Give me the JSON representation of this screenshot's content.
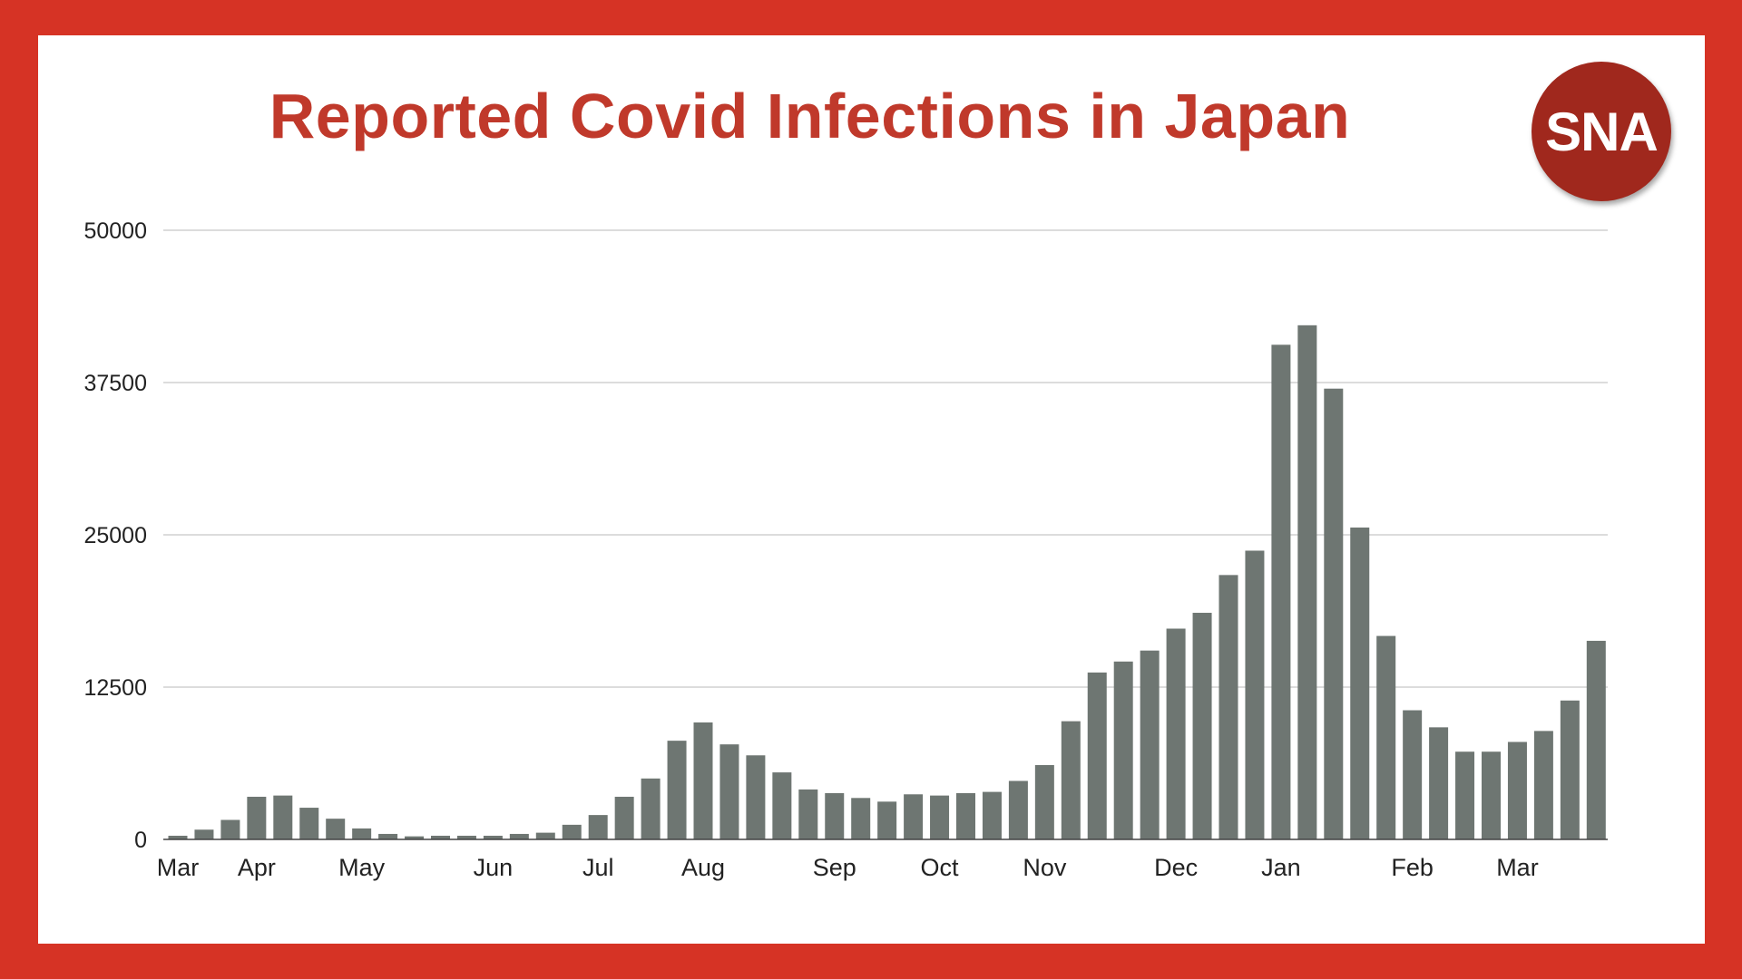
{
  "title": "Reported Covid Infections in Japan",
  "logo_text": "SNA",
  "colors": {
    "border": "#d63325",
    "title": "#c0392b",
    "logo": "#a0281d",
    "bar": "#6e7672",
    "grid": "#c8c8c8"
  },
  "chart_data": {
    "type": "bar",
    "title": "Reported Covid Infections in Japan",
    "xlabel": "",
    "ylabel": "",
    "ylim": [
      0,
      50000
    ],
    "yticks": [
      0,
      12500,
      25000,
      37500,
      50000
    ],
    "ytick_labels": [
      "0",
      "12500",
      "25000",
      "37500",
      "50000"
    ],
    "grid": true,
    "x_tick_labels": [
      {
        "label": "Mar",
        "bar_index": 0
      },
      {
        "label": "Apr",
        "bar_index": 3
      },
      {
        "label": "May",
        "bar_index": 7
      },
      {
        "label": "Jun",
        "bar_index": 12
      },
      {
        "label": "Jul",
        "bar_index": 16
      },
      {
        "label": "Aug",
        "bar_index": 20
      },
      {
        "label": "Sep",
        "bar_index": 25
      },
      {
        "label": "Oct",
        "bar_index": 29
      },
      {
        "label": "Nov",
        "bar_index": 33
      },
      {
        "label": "Dec",
        "bar_index": 38
      },
      {
        "label": "Jan",
        "bar_index": 42
      },
      {
        "label": "Feb",
        "bar_index": 47
      },
      {
        "label": "Mar",
        "bar_index": 51
      }
    ],
    "values": [
      300,
      800,
      1600,
      3500,
      3600,
      2600,
      1700,
      900,
      450,
      250,
      300,
      300,
      300,
      450,
      550,
      1200,
      2000,
      3500,
      5000,
      8100,
      9600,
      7800,
      6900,
      5500,
      4100,
      3800,
      3400,
      3100,
      3700,
      3600,
      3800,
      3900,
      4800,
      6100,
      9700,
      13700,
      14600,
      15500,
      17300,
      18600,
      21700,
      23700,
      40600,
      42200,
      37000,
      25600,
      16700,
      10600,
      9200,
      7200,
      7200,
      8000,
      8900,
      11400,
      16300
    ]
  }
}
